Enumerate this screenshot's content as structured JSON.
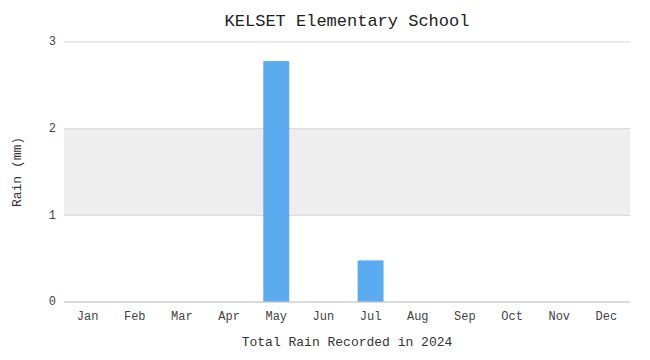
{
  "chart_data": {
    "type": "bar",
    "title": "KELSET Elementary School",
    "xlabel": "Total Rain Recorded in 2024",
    "ylabel": "Rain (mm)",
    "categories": [
      "Jan",
      "Feb",
      "Mar",
      "Apr",
      "May",
      "Jun",
      "Jul",
      "Aug",
      "Sep",
      "Oct",
      "Nov",
      "Dec"
    ],
    "values": [
      0,
      0,
      0,
      0,
      2.78,
      0,
      0.48,
      0,
      0,
      0,
      0,
      0
    ],
    "color": "#5aabf0",
    "ylim": [
      0,
      3
    ],
    "yticks": [
      0,
      1,
      2,
      3
    ],
    "grid": true
  }
}
